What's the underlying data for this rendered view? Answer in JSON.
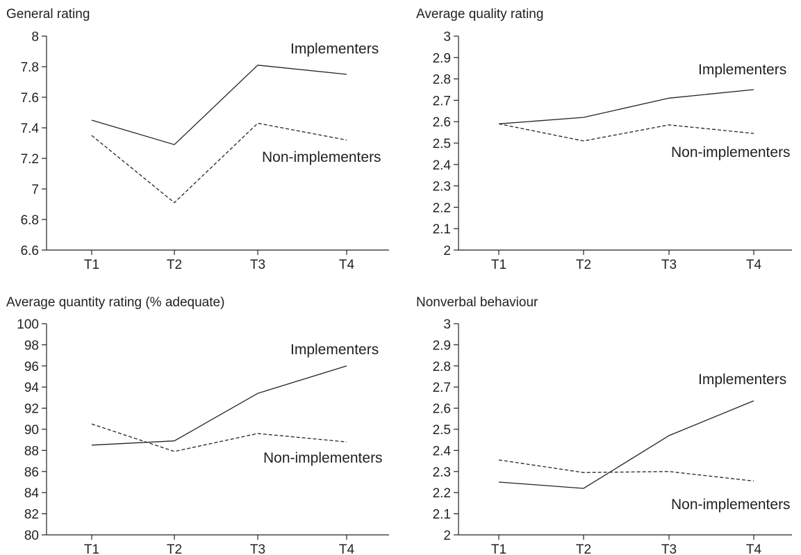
{
  "chart_data": [
    {
      "type": "line",
      "title": "General rating",
      "categories": [
        "T1",
        "T2",
        "T3",
        "T4"
      ],
      "ylim": [
        6.6,
        8
      ],
      "yticks": [
        "6.6",
        "6.8",
        "7",
        "7.2",
        "7.4",
        "7.6",
        "7.8",
        "8"
      ],
      "grid": false,
      "series": [
        {
          "name": "Implementers",
          "style": "solid",
          "values": [
            7.45,
            7.29,
            7.81,
            7.75
          ]
        },
        {
          "name": "Non-implementers",
          "style": "dashed",
          "values": [
            7.35,
            6.91,
            7.43,
            7.32
          ]
        }
      ]
    },
    {
      "type": "line",
      "title": "Average quality rating",
      "categories": [
        "T1",
        "T2",
        "T3",
        "T4"
      ],
      "ylim": [
        2,
        3
      ],
      "yticks": [
        "2",
        "2.1",
        "2.2",
        "2.3",
        "2.4",
        "2.5",
        "2.6",
        "2.7",
        "2.8",
        "2.9",
        "3"
      ],
      "grid": false,
      "series": [
        {
          "name": "Implementers",
          "style": "solid",
          "values": [
            2.59,
            2.62,
            2.71,
            2.75
          ]
        },
        {
          "name": "Non-implementers",
          "style": "dashed",
          "values": [
            2.59,
            2.51,
            2.585,
            2.545
          ]
        }
      ]
    },
    {
      "type": "line",
      "title": "Average quantity rating (% adequate)",
      "categories": [
        "T1",
        "T2",
        "T3",
        "T4"
      ],
      "ylim": [
        80,
        100
      ],
      "yticks": [
        "80",
        "82",
        "84",
        "86",
        "88",
        "90",
        "92",
        "94",
        "96",
        "98",
        "100"
      ],
      "grid": false,
      "series": [
        {
          "name": "Implementers",
          "style": "solid",
          "values": [
            88.5,
            88.9,
            93.4,
            96.0
          ]
        },
        {
          "name": "Non-implementers",
          "style": "dashed",
          "values": [
            90.5,
            87.9,
            89.6,
            88.8
          ]
        }
      ]
    },
    {
      "type": "line",
      "title": "Nonverbal behaviour",
      "categories": [
        "T1",
        "T2",
        "T3",
        "T4"
      ],
      "ylim": [
        2,
        3
      ],
      "yticks": [
        "2",
        "2.1",
        "2.2",
        "2.3",
        "2.4",
        "2.5",
        "2.6",
        "2.7",
        "2.8",
        "2.9",
        "3"
      ],
      "grid": false,
      "series": [
        {
          "name": "Implementers",
          "style": "solid",
          "values": [
            2.25,
            2.22,
            2.47,
            2.635
          ]
        },
        {
          "name": "Non-implementers",
          "style": "dashed",
          "values": [
            2.355,
            2.295,
            2.3,
            2.255
          ]
        }
      ]
    }
  ]
}
